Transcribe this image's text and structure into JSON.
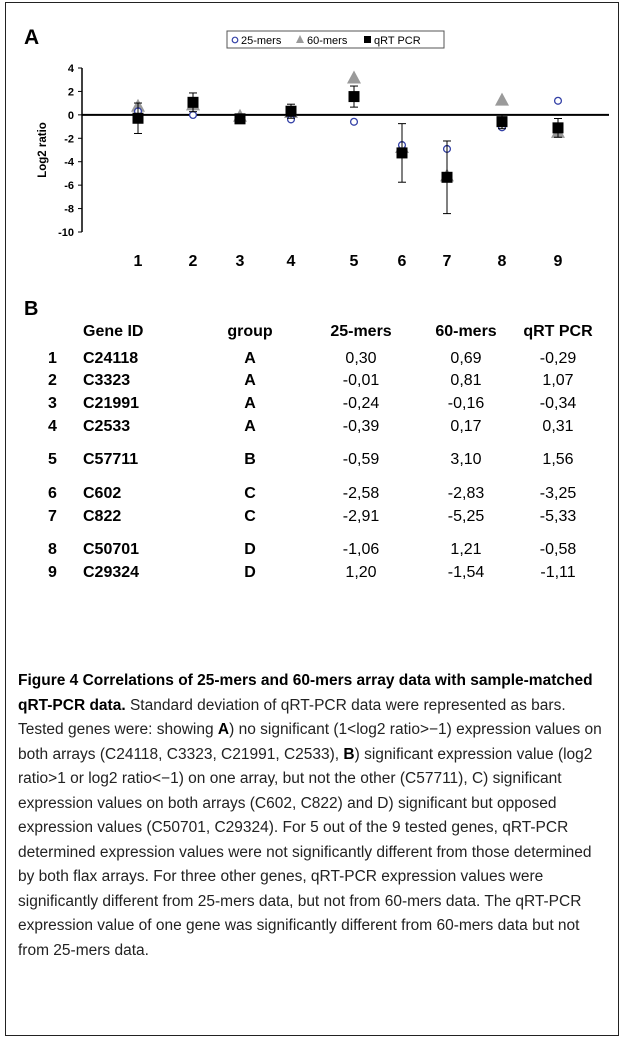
{
  "panel_a_label": "A",
  "panel_b_label": "B",
  "chart_data": {
    "type": "scatter",
    "ylabel": "Log2 ratio",
    "xlabel": "",
    "ylim": [
      -10,
      4
    ],
    "yticks": [
      "4",
      "2",
      "0",
      "-2",
      "-4",
      "-6",
      "-8",
      "-10"
    ],
    "x": [
      "1",
      "2",
      "3",
      "4",
      "5",
      "6",
      "7",
      "8",
      "9"
    ],
    "legend_position": "top",
    "series": [
      {
        "name": "25-mers",
        "marker": "open-circle",
        "color": "#3340a6",
        "values": [
          0.3,
          -0.01,
          -0.24,
          -0.39,
          -0.59,
          -2.58,
          -2.91,
          -1.06,
          1.2
        ]
      },
      {
        "name": "60-mers",
        "marker": "triangle",
        "color": "#9a9a9a",
        "values": [
          0.69,
          0.81,
          -0.16,
          0.17,
          3.1,
          -2.83,
          -5.25,
          1.21,
          -1.54
        ]
      },
      {
        "name": "qRT PCR",
        "marker": "filled-square",
        "color": "#000000",
        "values": [
          -0.29,
          1.07,
          -0.34,
          0.31,
          1.56,
          -3.25,
          -5.33,
          -0.58,
          -1.11
        ],
        "error": [
          1.3,
          0.8,
          0.3,
          0.6,
          0.9,
          2.5,
          3.1,
          0.6,
          0.8
        ]
      }
    ]
  },
  "table": {
    "headers": [
      "Gene ID",
      "group",
      "25-mers",
      "60-mers",
      "qRT PCR"
    ],
    "rows": [
      {
        "n": "1",
        "gene": "C24118",
        "group": "A",
        "m25": "0,30",
        "m60": "0,69",
        "qrt": "-0,29"
      },
      {
        "n": "2",
        "gene": "C3323",
        "group": "A",
        "m25": "-0,01",
        "m60": "0,81",
        "qrt": "1,07"
      },
      {
        "n": "3",
        "gene": "C21991",
        "group": "A",
        "m25": "-0,24",
        "m60": "-0,16",
        "qrt": "-0,34"
      },
      {
        "n": "4",
        "gene": "C2533",
        "group": "A",
        "m25": "-0,39",
        "m60": "0,17",
        "qrt": "0,31"
      },
      {
        "n": "5",
        "gene": "C57711",
        "group": "B",
        "m25": "-0,59",
        "m60": "3,10",
        "qrt": "1,56"
      },
      {
        "n": "6",
        "gene": "C602",
        "group": "C",
        "m25": "-2,58",
        "m60": "-2,83",
        "qrt": "-3,25"
      },
      {
        "n": "7",
        "gene": "C822",
        "group": "C",
        "m25": "-2,91",
        "m60": "-5,25",
        "qrt": "-5,33"
      },
      {
        "n": "8",
        "gene": "C50701",
        "group": "D",
        "m25": "-1,06",
        "m60": "1,21",
        "qrt": "-0,58"
      },
      {
        "n": "9",
        "gene": "C29324",
        "group": "D",
        "m25": "1,20",
        "m60": "-1,54",
        "qrt": "-1,11"
      }
    ]
  },
  "caption": {
    "title": "Figure 4 Correlations of 25-mers and 60-mers array data with sample-matched qRT-PCR data.",
    "t1": " Standard deviation of qRT-PCR data were represented as bars. Tested genes were: showing ",
    "bA": "A",
    "t2": ") no significant (1<log2 ratio>−1) expression values on both arrays (C24118, C3323, C21991, C2533), ",
    "bB": "B",
    "t3": ") significant expression value (log2 ratio>1 or log2 ratio<−1) on one array, but not the other (C57711), C) significant expression values on both arrays (C602, C822) and D) significant but opposed expression values (C50701, C29324). For 5 out of the 9 tested genes, qRT-PCR determined expression values were not significantly different from those determined by both flax arrays. For three other genes, qRT-PCR expression values were significantly different from 25-mers data, but not from 60-mers data. The qRT-PCR expression value of one gene was significantly different from 60-mers data but not from 25-mers data."
  }
}
